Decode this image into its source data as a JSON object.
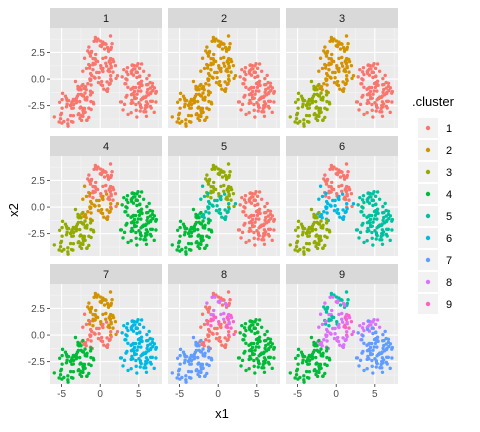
{
  "chart_data": {
    "type": "scatter",
    "facet_layout": "3x3 grid",
    "panels": [
      "1",
      "2",
      "3",
      "4",
      "5",
      "6",
      "7",
      "8",
      "9"
    ],
    "xlabel": "x1",
    "ylabel": "x2",
    "xlim": [
      -6.5,
      8
    ],
    "ylim": [
      -4.6,
      4.8
    ],
    "x_ticks": [
      -5,
      0,
      5
    ],
    "x_tick_labels": [
      "-5",
      "0",
      "5"
    ],
    "y_ticks": [
      -2.5,
      0.0,
      2.5
    ],
    "y_tick_labels": [
      "-2.5",
      "0.0",
      "2.5"
    ],
    "grid": true,
    "legend": {
      "title": ".cluster",
      "placement": "right",
      "entries": [
        {
          "label": "1",
          "color": "#F8766D"
        },
        {
          "label": "2",
          "color": "#D39200"
        },
        {
          "label": "3",
          "color": "#93AA00"
        },
        {
          "label": "4",
          "color": "#00BA38"
        },
        {
          "label": "5",
          "color": "#00C19F"
        },
        {
          "label": "6",
          "color": "#00B9E3"
        },
        {
          "label": "7",
          "color": "#619CFF"
        },
        {
          "label": "8",
          "color": "#DB72FB"
        },
        {
          "label": "9",
          "color": "#FF61C3"
        }
      ]
    },
    "seed_points": [
      [
        -0.3,
        3.9
      ],
      [
        0.5,
        3.6
      ],
      [
        1.2,
        3.1
      ],
      [
        -1.0,
        2.6
      ],
      [
        0.0,
        2.9
      ],
      [
        -0.6,
        1.9
      ],
      [
        0.6,
        2.1
      ],
      [
        1.6,
        1.6
      ],
      [
        -1.2,
        1.3
      ],
      [
        -0.2,
        1.6
      ],
      [
        0.9,
        1.0
      ],
      [
        1.7,
        0.6
      ],
      [
        -1.8,
        0.7
      ],
      [
        -0.7,
        0.4
      ],
      [
        0.3,
        0.8
      ],
      [
        1.2,
        -0.2
      ],
      [
        -0.1,
        -0.4
      ],
      [
        -1.3,
        -0.3
      ],
      [
        0.7,
        -1.0
      ],
      [
        -2.0,
        -0.7
      ],
      [
        -2.6,
        -1.3
      ],
      [
        -3.3,
        -1.7
      ],
      [
        -4.2,
        -2.3
      ],
      [
        -3.6,
        -2.6
      ],
      [
        -2.7,
        -2.1
      ],
      [
        -4.6,
        -3.1
      ],
      [
        -3.1,
        -3.5
      ],
      [
        -2.2,
        -2.8
      ],
      [
        -1.6,
        -1.8
      ],
      [
        -5.0,
        -3.7
      ],
      [
        -3.8,
        -4.0
      ],
      [
        -2.3,
        -3.9
      ],
      [
        -1.4,
        -3.0
      ],
      [
        -4.8,
        -1.9
      ],
      [
        -1.1,
        -2.3
      ],
      [
        -2.9,
        -0.7
      ],
      [
        3.8,
        1.0
      ],
      [
        4.6,
        1.3
      ],
      [
        5.6,
        0.9
      ],
      [
        3.4,
        0.2
      ],
      [
        4.4,
        0.4
      ],
      [
        5.3,
        0.1
      ],
      [
        6.4,
        0.2
      ],
      [
        3.6,
        -0.6
      ],
      [
        4.6,
        -0.5
      ],
      [
        5.6,
        -0.8
      ],
      [
        6.6,
        -0.7
      ],
      [
        3.9,
        -1.4
      ],
      [
        4.8,
        -1.6
      ],
      [
        5.8,
        -1.7
      ],
      [
        7.0,
        -1.3
      ],
      [
        4.3,
        -2.3
      ],
      [
        5.4,
        -2.4
      ],
      [
        6.4,
        -2.3
      ],
      [
        4.8,
        -3.0
      ],
      [
        5.9,
        -3.2
      ],
      [
        3.2,
        -1.9
      ],
      [
        7.2,
        -2.5
      ]
    ],
    "assignments": {
      "1": "1111111111111111111111111111111111111111111111111111111111",
      "2": "2222222222222222222222222222222222221111111111111111111111",
      "3": "2222222222222222222233333333333333331111111111111111111111",
      "4": "1111111111112222222233333333333333334444444444444444444444",
      "5": "3333333333335555555544444444444444441111111111111111111111",
      "6": "1111111111116666666633333333333333335555555555555555555555",
      "7": "2222222222221111111144444444444444446666666666666666666666",
      "8": "1111888899991111111177777777777777774444444444444444444444",
      "9": "5555888855998888888844444444444444448888777777777777777777"
    }
  }
}
